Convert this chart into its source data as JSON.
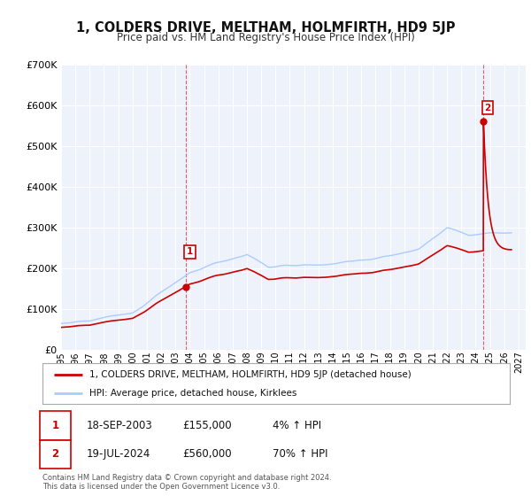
{
  "title": "1, COLDERS DRIVE, MELTHAM, HOLMFIRTH, HD9 5JP",
  "subtitle": "Price paid vs. HM Land Registry's House Price Index (HPI)",
  "legend_label_red": "1, COLDERS DRIVE, MELTHAM, HOLMFIRTH, HD9 5JP (detached house)",
  "legend_label_blue": "HPI: Average price, detached house, Kirklees",
  "transaction1_date": "18-SEP-2003",
  "transaction1_price": "£155,000",
  "transaction1_hpi": "4% ↑ HPI",
  "transaction1_year": 2003.72,
  "transaction1_value": 155000,
  "transaction2_date": "19-JUL-2024",
  "transaction2_price": "£560,000",
  "transaction2_hpi": "70% ↑ HPI",
  "transaction2_year": 2024.55,
  "transaction2_value": 560000,
  "footer1": "Contains HM Land Registry data © Crown copyright and database right 2024.",
  "footer2": "This data is licensed under the Open Government Licence v3.0.",
  "bg_color": "#eef2fb",
  "red_color": "#cc0000",
  "blue_color": "#aaccff",
  "grid_color": "#ffffff",
  "ylim": [
    0,
    700000
  ],
  "yticks": [
    0,
    100000,
    200000,
    300000,
    400000,
    500000,
    600000,
    700000
  ],
  "xlim_start": 1995.0,
  "xlim_end": 2027.5,
  "xticks": [
    1995,
    1996,
    1997,
    1998,
    1999,
    2000,
    2001,
    2002,
    2003,
    2004,
    2005,
    2006,
    2007,
    2008,
    2009,
    2010,
    2011,
    2012,
    2013,
    2014,
    2015,
    2016,
    2017,
    2018,
    2019,
    2020,
    2021,
    2022,
    2023,
    2024,
    2025,
    2026,
    2027
  ]
}
